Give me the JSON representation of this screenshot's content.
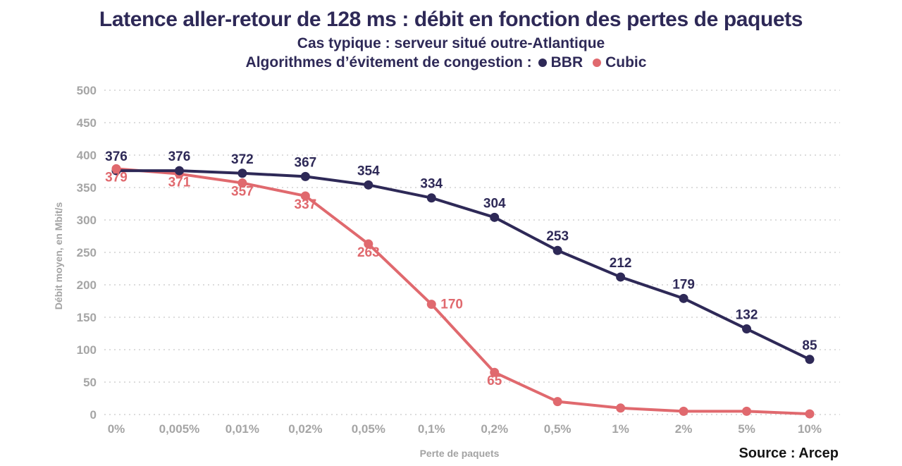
{
  "header": {
    "title": "Latence aller-retour de 128 ms : débit en fonction des pertes de paquets",
    "subtitle": "Cas typique : serveur situé outre-Atlantique",
    "legend_prefix": "Algorithmes d’évitement de congestion :",
    "legend": [
      {
        "name": "BBR",
        "color": "#2e2957"
      },
      {
        "name": "Cubic",
        "color": "#e0696e"
      }
    ]
  },
  "chart_data": {
    "type": "line",
    "title": "Latence aller-retour de 128 ms : débit en fonction des pertes de paquets",
    "subtitle": "Cas typique : serveur situé outre-Atlantique",
    "categories": [
      "0%",
      "0,005%",
      "0,01%",
      "0,02%",
      "0,05%",
      "0,1%",
      "0,2%",
      "0,5%",
      "1%",
      "2%",
      "5%",
      "10%"
    ],
    "series": [
      {
        "name": "BBR",
        "color": "#2e2957",
        "values": [
          376,
          376,
          372,
          367,
          354,
          334,
          304,
          253,
          212,
          179,
          132,
          85
        ],
        "labels": [
          "376",
          "376",
          "372",
          "367",
          "354",
          "334",
          "304",
          "253",
          "212",
          "179",
          "132",
          "85"
        ]
      },
      {
        "name": "Cubic",
        "color": "#e0696e",
        "values": [
          379,
          371,
          357,
          337,
          263,
          170,
          65,
          20,
          10,
          5,
          5,
          1
        ],
        "labels": [
          "379",
          "371",
          "357",
          "337",
          "263",
          "170",
          "65",
          null,
          null,
          null,
          null,
          null
        ]
      }
    ],
    "xlabel": "Perte de paquets",
    "ylabel": "Débit moyen, en Mbit/s",
    "ylim": [
      0,
      500
    ],
    "yticks": [
      0,
      50,
      100,
      150,
      200,
      250,
      300,
      350,
      400,
      450,
      500
    ],
    "grid": "horizontal-dotted",
    "legend_position": "top-subtitle"
  },
  "footer": {
    "source": "Source : Arcep"
  }
}
